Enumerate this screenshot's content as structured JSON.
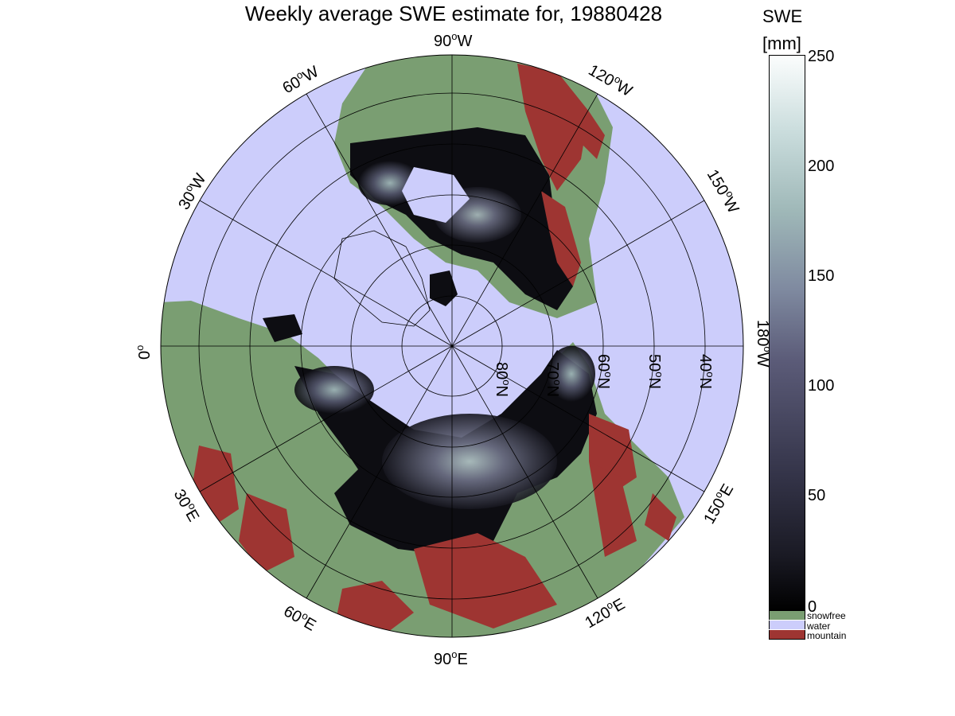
{
  "title": "Weekly average SWE estimate for, 19880428",
  "colorbar": {
    "title": "SWE",
    "unit": "[mm]",
    "ticks": [
      "250",
      "200",
      "150",
      "100",
      "50",
      "0"
    ],
    "range": [
      0,
      250
    ]
  },
  "legend": [
    {
      "label": "snowfree",
      "color": "#7a9e72"
    },
    {
      "label": "water",
      "color": "#cccdfb"
    },
    {
      "label": "mountain",
      "color": "#9e3532"
    }
  ],
  "longitude_labels": {
    "top": "90",
    "top_suffix": "W",
    "l60w": "60",
    "l120w": "120",
    "l30w": "30",
    "l150w": "150",
    "l0": "0",
    "l180w": "180",
    "l30e": "30",
    "l150e": "150",
    "l60e": "60",
    "l120e": "120",
    "bottom": "90",
    "w": "W",
    "e": "E"
  },
  "latitude_labels": [
    "80",
    "70",
    "60",
    "50",
    "40"
  ],
  "lat_suffix": "N",
  "colors": {
    "water": "#cccdfb",
    "snowfree": "#7a9e72",
    "mountain": "#9e3532",
    "snow_dark": "#0a0a0e",
    "snow_mid": "#4a4a62",
    "snow_high": "#b8cccc"
  }
}
